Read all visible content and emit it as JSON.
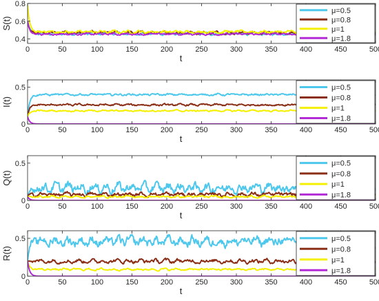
{
  "chart_data": [
    {
      "type": "line",
      "ylabel": "S(t)",
      "xlabel": "t",
      "xlim": [
        0,
        500
      ],
      "ylim": [
        0.35,
        0.8
      ],
      "xticks": [
        "0",
        "50",
        "100",
        "150",
        "200",
        "250",
        "300",
        "350",
        "400",
        "450",
        "500"
      ],
      "yticks": [
        "0.4",
        "0.6",
        "0.8"
      ],
      "ytick_values": [
        0.4,
        0.6,
        0.8
      ],
      "legend_position": "right",
      "series": [
        {
          "name": "μ=0.5",
          "color": "#4dc8ec",
          "start": 0.6,
          "mean": 0.46,
          "amp": 0.012
        },
        {
          "name": "μ=0.8",
          "color": "#8b2e16",
          "start": 0.6,
          "mean": 0.47,
          "amp": 0.012
        },
        {
          "name": "μ=1",
          "color": "#f4f000",
          "start": 0.78,
          "mean": 0.48,
          "amp": 0.012
        },
        {
          "name": "μ=1.8",
          "color": "#b32bd6",
          "start": 0.6,
          "mean": 0.455,
          "amp": 0.008
        }
      ]
    },
    {
      "type": "line",
      "ylabel": "I(t)",
      "xlabel": "t",
      "xlim": [
        0,
        500
      ],
      "ylim": [
        0,
        0.6
      ],
      "xticks": [
        "0",
        "50",
        "100",
        "150",
        "200",
        "250",
        "300",
        "350",
        "400",
        "450",
        "500"
      ],
      "yticks": [
        "0",
        "0.5"
      ],
      "ytick_values": [
        0,
        0.5
      ],
      "legend_position": "right",
      "series": [
        {
          "name": "μ=0.5",
          "color": "#4dc8ec",
          "start": 0.1,
          "mean": 0.4,
          "amp": 0.01
        },
        {
          "name": "μ=0.8",
          "color": "#8b2e16",
          "start": 0.1,
          "mean": 0.26,
          "amp": 0.01
        },
        {
          "name": "μ=1",
          "color": "#f4f000",
          "start": 0.1,
          "mean": 0.18,
          "amp": 0.008
        },
        {
          "name": "μ=1.8",
          "color": "#b32bd6",
          "start": 0.1,
          "mean": 0.0,
          "amp": 0.0
        }
      ]
    },
    {
      "type": "line",
      "ylabel": "Q(t)",
      "xlabel": "t",
      "xlim": [
        0,
        500
      ],
      "ylim": [
        0,
        0.6
      ],
      "xticks": [
        "0",
        "50",
        "100",
        "150",
        "200",
        "250",
        "300",
        "350",
        "400",
        "450",
        "500"
      ],
      "yticks": [
        "0",
        "0.5"
      ],
      "ytick_values": [
        0,
        0.5
      ],
      "legend_position": "right",
      "series": [
        {
          "name": "μ=0.5",
          "color": "#4dc8ec",
          "start": 0.05,
          "mean": 0.17,
          "amp": 0.05
        },
        {
          "name": "μ=0.8",
          "color": "#8b2e16",
          "start": 0.05,
          "mean": 0.08,
          "amp": 0.02
        },
        {
          "name": "μ=1",
          "color": "#f4f000",
          "start": 0.05,
          "mean": 0.05,
          "amp": 0.01
        },
        {
          "name": "μ=1.8",
          "color": "#b32bd6",
          "start": 0.05,
          "mean": 0.0,
          "amp": 0.0
        }
      ]
    },
    {
      "type": "line",
      "ylabel": "R(t)",
      "xlabel": "t",
      "xlim": [
        0,
        500
      ],
      "ylim": [
        0,
        0.6
      ],
      "xticks": [
        "0",
        "50",
        "100",
        "150",
        "200",
        "250",
        "300",
        "350",
        "400",
        "450",
        "500"
      ],
      "yticks": [
        "0",
        "0.5"
      ],
      "ytick_values": [
        0,
        0.5
      ],
      "legend_position": "right",
      "series": [
        {
          "name": "μ=0.5",
          "color": "#4dc8ec",
          "start": 0.2,
          "mean": 0.46,
          "amp": 0.05
        },
        {
          "name": "μ=0.8",
          "color": "#8b2e16",
          "start": 0.2,
          "mean": 0.2,
          "amp": 0.02
        },
        {
          "name": "μ=1",
          "color": "#f4f000",
          "start": 0.2,
          "mean": 0.09,
          "amp": 0.01
        },
        {
          "name": "μ=1.8",
          "color": "#b32bd6",
          "start": 0.2,
          "mean": 0.0,
          "amp": 0.0
        }
      ]
    }
  ]
}
